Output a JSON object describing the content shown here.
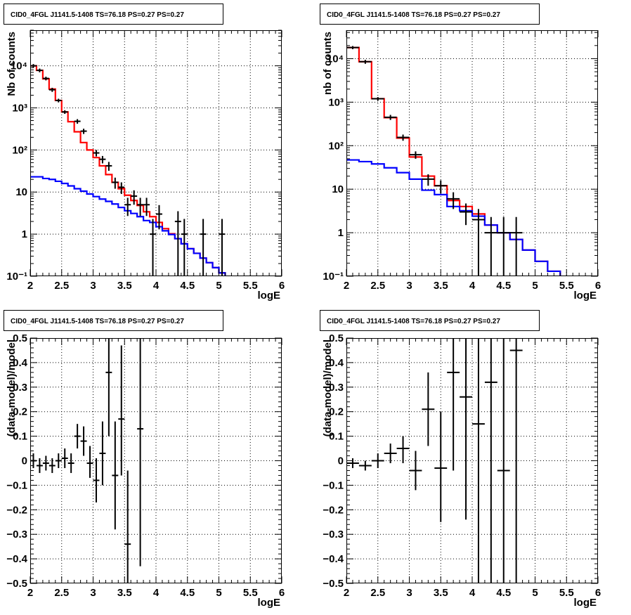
{
  "chart_data": [
    {
      "id": "tl",
      "type": "line",
      "title": "CID0_4FGL J1141.5-1408 TS=76.18 PS=0.27 PS=0.27",
      "xlabel": "logE",
      "ylabel": "Nb of counts",
      "xlim": [
        2,
        6
      ],
      "ylim": [
        0.1,
        70000
      ],
      "yscale": "log",
      "grid": true,
      "xticks": [
        2,
        2.5,
        3,
        3.5,
        4,
        4.5,
        5,
        5.5,
        6
      ],
      "xtick_labels": [
        "2",
        "2.5",
        "3",
        "3.5",
        "4",
        "4.5",
        "5",
        "5.5",
        "6"
      ],
      "yticks": [
        0.1,
        1,
        10,
        100,
        1000,
        10000
      ],
      "ytick_labels": [
        "10⁻¹",
        "1",
        "10",
        "10²",
        "10³",
        "10⁴"
      ],
      "series": [
        {
          "kind": "step",
          "color": "#ff0000",
          "edges": [
            2,
            2.1,
            2.2,
            2.3,
            2.4,
            2.5,
            2.6,
            2.7,
            2.8,
            2.9,
            3.0,
            3.1,
            3.2,
            3.3,
            3.4,
            3.5,
            3.6,
            3.7,
            3.8,
            3.9,
            4.0,
            4.1,
            4.2,
            4.3,
            4.4,
            4.5,
            4.6,
            4.7,
            4.8,
            4.9,
            5.0,
            5.1,
            5.2,
            5.3,
            5.4,
            5.5,
            5.6,
            5.7,
            5.8,
            5.9,
            6.0
          ],
          "values": [
            10000,
            7800,
            4900,
            2800,
            1500,
            800,
            470,
            270,
            150,
            100,
            66,
            42,
            26,
            17,
            12,
            8.4,
            6.3,
            4.8,
            3.4,
            2.6,
            1.9,
            1.35,
            1.02,
            0.78,
            0.59,
            0.45,
            0.35,
            0.27,
            0.21,
            0.16,
            0.12,
            0.09,
            0.09,
            0.09,
            0.09,
            0.09,
            0.09,
            0.09,
            0.09,
            0.09
          ]
        },
        {
          "kind": "step",
          "color": "#0000ff",
          "edges": [
            2,
            2.1,
            2.2,
            2.3,
            2.4,
            2.5,
            2.6,
            2.7,
            2.8,
            2.9,
            3.0,
            3.1,
            3.2,
            3.3,
            3.4,
            3.5,
            3.6,
            3.7,
            3.8,
            3.9,
            4.0,
            4.1,
            4.2,
            4.3,
            4.4,
            4.5,
            4.6,
            4.7,
            4.8,
            4.9,
            5.0,
            5.1,
            5.2,
            5.3,
            5.4,
            5.5,
            5.6,
            5.7,
            5.8,
            5.9,
            6.0
          ],
          "values": [
            23,
            23,
            21,
            20,
            18,
            16,
            14,
            12,
            10.5,
            9,
            7.8,
            6.8,
            6.0,
            5.2,
            4.3,
            3.6,
            3.1,
            2.6,
            2.1,
            1.9,
            1.5,
            1.2,
            0.98,
            0.78,
            0.59,
            0.45,
            0.35,
            0.27,
            0.21,
            0.16,
            0.12,
            0.09,
            0.09,
            0.09,
            0.09,
            0.09,
            0.09,
            0.09,
            0.09,
            0.09
          ]
        },
        {
          "kind": "points",
          "color": "#000000",
          "points": [
            [
              2.05,
              10000,
              1000,
              1000
            ],
            [
              2.15,
              7800,
              800,
              800
            ],
            [
              2.25,
              5000,
              500,
              500
            ],
            [
              2.35,
              2700,
              300,
              300
            ],
            [
              2.45,
              1500,
              150,
              150
            ],
            [
              2.55,
              800,
              80,
              80
            ],
            [
              2.75,
              480,
              60,
              60
            ],
            [
              2.85,
              280,
              40,
              40
            ],
            [
              3.05,
              85,
              15,
              15
            ],
            [
              3.15,
              60,
              12,
              12
            ],
            [
              3.25,
              42,
              10,
              10
            ],
            [
              3.35,
              17,
              5,
              5
            ],
            [
              3.45,
              13,
              4,
              4
            ],
            [
              3.55,
              5,
              2.3,
              2.3
            ],
            [
              3.65,
              8,
              3,
              3
            ],
            [
              3.75,
              5,
              2.3,
              2.3
            ],
            [
              3.85,
              5,
              2.3,
              2.3
            ],
            [
              3.95,
              1,
              0.9,
              1.3
            ],
            [
              4.05,
              3,
              1.7,
              1.9
            ],
            [
              4.35,
              2,
              1.9,
              1.5
            ],
            [
              4.45,
              1,
              0.9,
              1.3
            ],
            [
              4.75,
              1,
              0.9,
              1.3
            ],
            [
              5.05,
              1,
              0.9,
              1.3
            ]
          ]
        }
      ]
    },
    {
      "id": "tr",
      "type": "line",
      "title": "CID0_4FGL J1141.5-1408 TS=76.18 PS=0.27 PS=0.27",
      "xlabel": "logE",
      "ylabel": "nb of counts",
      "xlim": [
        2,
        6
      ],
      "ylim": [
        0.1,
        45000
      ],
      "yscale": "log",
      "grid": true,
      "xticks": [
        2,
        2.5,
        3,
        3.5,
        4,
        4.5,
        5,
        5.5,
        6
      ],
      "xtick_labels": [
        "2",
        "2.5",
        "3",
        "3.5",
        "4",
        "4.5",
        "5",
        "5.5",
        "6"
      ],
      "yticks": [
        0.1,
        1,
        10,
        100,
        1000,
        10000
      ],
      "ytick_labels": [
        "10⁻¹",
        "1",
        "10",
        "10²",
        "10³",
        "10⁴"
      ],
      "series": [
        {
          "kind": "step",
          "color": "#ff0000",
          "edges": [
            2,
            2.2,
            2.4,
            2.6,
            2.8,
            3.0,
            3.2,
            3.4,
            3.6,
            3.8,
            4.0,
            4.2,
            4.4,
            4.6,
            4.8,
            5.0,
            5.2,
            5.4,
            5.6,
            5.8,
            6.0
          ],
          "values": [
            18000,
            8500,
            1200,
            440,
            150,
            55,
            20,
            12,
            5.5,
            4.0,
            2.7,
            1.5,
            1.0,
            0.7,
            0.4,
            0.22,
            0.13,
            0.09,
            0.09,
            0.09
          ]
        },
        {
          "kind": "step",
          "color": "#0000ff",
          "edges": [
            2,
            2.2,
            2.4,
            2.6,
            2.8,
            3.0,
            3.2,
            3.4,
            3.6,
            3.8,
            4.0,
            4.2,
            4.4,
            4.6,
            4.8,
            5.0,
            5.2,
            5.4,
            5.6,
            5.8,
            6.0
          ],
          "values": [
            47,
            43,
            38,
            31,
            24,
            17,
            9.5,
            7.5,
            4.0,
            3.2,
            2.4,
            1.5,
            1.0,
            0.7,
            0.4,
            0.22,
            0.13,
            0.09,
            0.09,
            0.09
          ]
        },
        {
          "kind": "points",
          "color": "#000000",
          "points": [
            [
              2.1,
              18000,
              1500,
              1500
            ],
            [
              2.3,
              8500,
              900,
              900
            ],
            [
              2.5,
              1200,
              110,
              110
            ],
            [
              2.7,
              450,
              60,
              60
            ],
            [
              2.9,
              155,
              25,
              25
            ],
            [
              3.1,
              62,
              12,
              12
            ],
            [
              3.3,
              17,
              5,
              5
            ],
            [
              3.5,
              12,
              4,
              4
            ],
            [
              3.7,
              6,
              2.5,
              2.5
            ],
            [
              3.9,
              3,
              1.5,
              1.7
            ],
            [
              4.1,
              2,
              1.9,
              1.5
            ],
            [
              4.3,
              1,
              0.9,
              1.3
            ],
            [
              4.5,
              1,
              0.9,
              1.3
            ],
            [
              4.7,
              1,
              0.9,
              1.3
            ]
          ]
        }
      ]
    },
    {
      "id": "bl",
      "type": "scatter",
      "title": "CID0_4FGL J1141.5-1408 TS=76.18 PS=0.27 PS=0.27",
      "xlabel": "logE",
      "ylabel": "(data-model)/model",
      "xlim": [
        2,
        6
      ],
      "ylim": [
        -0.5,
        0.5
      ],
      "yscale": "linear",
      "grid": true,
      "xticks": [
        2,
        2.5,
        3,
        3.5,
        4,
        4.5,
        5,
        5.5,
        6
      ],
      "xtick_labels": [
        "2",
        "2.5",
        "3",
        "3.5",
        "4",
        "4.5",
        "5",
        "5.5",
        "6"
      ],
      "yticks": [
        -0.5,
        -0.4,
        -0.3,
        -0.2,
        -0.1,
        0,
        0.1,
        0.2,
        0.3,
        0.4,
        0.5
      ],
      "ytick_labels": [
        "−0.5",
        "−0.4",
        "−0.3",
        "−0.2",
        "−0.1",
        "0",
        "0.1",
        "0.2",
        "0.3",
        "0.4",
        "0.5"
      ],
      "series": [
        {
          "kind": "points",
          "color": "#000000",
          "points": [
            [
              2.05,
              0.0,
              0.03,
              0.03
            ],
            [
              2.15,
              -0.02,
              0.03,
              0.03
            ],
            [
              2.25,
              -0.01,
              0.03,
              0.03
            ],
            [
              2.35,
              -0.02,
              0.03,
              0.03
            ],
            [
              2.45,
              0.0,
              0.03,
              0.03
            ],
            [
              2.55,
              0.01,
              0.04,
              0.04
            ],
            [
              2.65,
              -0.01,
              0.04,
              0.04
            ],
            [
              2.75,
              0.1,
              0.05,
              0.05
            ],
            [
              2.85,
              0.08,
              0.06,
              0.06
            ],
            [
              2.95,
              -0.01,
              0.06,
              0.07
            ],
            [
              3.05,
              -0.08,
              0.09,
              0.09
            ],
            [
              3.15,
              0.03,
              0.13,
              0.13
            ],
            [
              3.25,
              0.36,
              0.26,
              0.2
            ],
            [
              3.35,
              -0.06,
              0.22,
              0.22
            ],
            [
              3.45,
              0.17,
              0.23,
              0.3
            ],
            [
              3.55,
              -0.34,
              0.3,
              0.3
            ],
            [
              3.75,
              0.13,
              0.56,
              0.5
            ]
          ]
        }
      ]
    },
    {
      "id": "br",
      "type": "scatter",
      "title": "CID0_4FGL J1141.5-1408 TS=76.18 PS=0.27 PS=0.27",
      "xlabel": "logE",
      "ylabel": "(data-model)/model",
      "xlim": [
        2,
        6
      ],
      "ylim": [
        -0.5,
        0.5
      ],
      "yscale": "linear",
      "grid": true,
      "xticks": [
        2,
        2.5,
        3,
        3.5,
        4,
        4.5,
        5,
        5.5,
        6
      ],
      "xtick_labels": [
        "2",
        "2.5",
        "3",
        "3.5",
        "4",
        "4.5",
        "5",
        "5.5",
        "6"
      ],
      "yticks": [
        -0.5,
        -0.4,
        -0.3,
        -0.2,
        -0.1,
        0,
        0.1,
        0.2,
        0.3,
        0.4,
        0.5
      ],
      "ytick_labels": [
        "−0.5",
        "−0.4",
        "−0.3",
        "−0.2",
        "−0.1",
        "0",
        "0.1",
        "0.2",
        "0.3",
        "0.4",
        "0.5"
      ],
      "series": [
        {
          "kind": "points",
          "color": "#000000",
          "points": [
            [
              2.1,
              -0.01,
              0.02,
              0.02
            ],
            [
              2.3,
              -0.02,
              0.02,
              0.02
            ],
            [
              2.5,
              0.0,
              0.03,
              0.03
            ],
            [
              2.7,
              0.03,
              0.04,
              0.04
            ],
            [
              2.9,
              0.05,
              0.06,
              0.05
            ],
            [
              3.1,
              -0.04,
              0.08,
              0.08
            ],
            [
              3.3,
              0.21,
              0.15,
              0.15
            ],
            [
              3.5,
              -0.03,
              0.22,
              0.23
            ],
            [
              3.7,
              0.36,
              0.4,
              0.3
            ],
            [
              3.9,
              0.26,
              0.5,
              0.5
            ],
            [
              4.1,
              0.15,
              0.65,
              0.65
            ],
            [
              4.3,
              0.32,
              0.82,
              0.82
            ],
            [
              4.5,
              -0.04,
              0.9,
              0.9
            ],
            [
              4.7,
              0.45,
              0.95,
              0.95
            ]
          ]
        }
      ]
    }
  ]
}
